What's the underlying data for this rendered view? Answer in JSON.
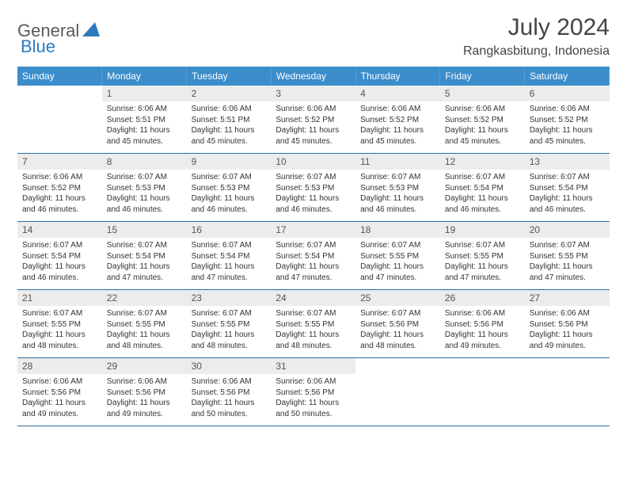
{
  "logo": {
    "part1": "General",
    "part2": "Blue"
  },
  "title": "July 2024",
  "location": "Rangkasbitung, Indonesia",
  "colors": {
    "header_bg": "#3c8dcc",
    "header_text": "#ffffff",
    "daynum_bg": "#ececec",
    "row_separator": "#2b6fa3",
    "logo_gray": "#5a5a5a",
    "logo_blue": "#2b7bbd",
    "body_text": "#333333"
  },
  "typography": {
    "title_fontsize": 30,
    "location_fontsize": 16,
    "header_fontsize": 12,
    "daynum_fontsize": 12,
    "dayinfo_fontsize": 10
  },
  "weekdays": [
    "Sunday",
    "Monday",
    "Tuesday",
    "Wednesday",
    "Thursday",
    "Friday",
    "Saturday"
  ],
  "weeks": [
    [
      null,
      {
        "n": "1",
        "sunrise": "6:06 AM",
        "sunset": "5:51 PM",
        "daylight": "11 hours and 45 minutes."
      },
      {
        "n": "2",
        "sunrise": "6:06 AM",
        "sunset": "5:51 PM",
        "daylight": "11 hours and 45 minutes."
      },
      {
        "n": "3",
        "sunrise": "6:06 AM",
        "sunset": "5:52 PM",
        "daylight": "11 hours and 45 minutes."
      },
      {
        "n": "4",
        "sunrise": "6:06 AM",
        "sunset": "5:52 PM",
        "daylight": "11 hours and 45 minutes."
      },
      {
        "n": "5",
        "sunrise": "6:06 AM",
        "sunset": "5:52 PM",
        "daylight": "11 hours and 45 minutes."
      },
      {
        "n": "6",
        "sunrise": "6:06 AM",
        "sunset": "5:52 PM",
        "daylight": "11 hours and 45 minutes."
      }
    ],
    [
      {
        "n": "7",
        "sunrise": "6:06 AM",
        "sunset": "5:52 PM",
        "daylight": "11 hours and 46 minutes."
      },
      {
        "n": "8",
        "sunrise": "6:07 AM",
        "sunset": "5:53 PM",
        "daylight": "11 hours and 46 minutes."
      },
      {
        "n": "9",
        "sunrise": "6:07 AM",
        "sunset": "5:53 PM",
        "daylight": "11 hours and 46 minutes."
      },
      {
        "n": "10",
        "sunrise": "6:07 AM",
        "sunset": "5:53 PM",
        "daylight": "11 hours and 46 minutes."
      },
      {
        "n": "11",
        "sunrise": "6:07 AM",
        "sunset": "5:53 PM",
        "daylight": "11 hours and 46 minutes."
      },
      {
        "n": "12",
        "sunrise": "6:07 AM",
        "sunset": "5:54 PM",
        "daylight": "11 hours and 46 minutes."
      },
      {
        "n": "13",
        "sunrise": "6:07 AM",
        "sunset": "5:54 PM",
        "daylight": "11 hours and 46 minutes."
      }
    ],
    [
      {
        "n": "14",
        "sunrise": "6:07 AM",
        "sunset": "5:54 PM",
        "daylight": "11 hours and 46 minutes."
      },
      {
        "n": "15",
        "sunrise": "6:07 AM",
        "sunset": "5:54 PM",
        "daylight": "11 hours and 47 minutes."
      },
      {
        "n": "16",
        "sunrise": "6:07 AM",
        "sunset": "5:54 PM",
        "daylight": "11 hours and 47 minutes."
      },
      {
        "n": "17",
        "sunrise": "6:07 AM",
        "sunset": "5:54 PM",
        "daylight": "11 hours and 47 minutes."
      },
      {
        "n": "18",
        "sunrise": "6:07 AM",
        "sunset": "5:55 PM",
        "daylight": "11 hours and 47 minutes."
      },
      {
        "n": "19",
        "sunrise": "6:07 AM",
        "sunset": "5:55 PM",
        "daylight": "11 hours and 47 minutes."
      },
      {
        "n": "20",
        "sunrise": "6:07 AM",
        "sunset": "5:55 PM",
        "daylight": "11 hours and 47 minutes."
      }
    ],
    [
      {
        "n": "21",
        "sunrise": "6:07 AM",
        "sunset": "5:55 PM",
        "daylight": "11 hours and 48 minutes."
      },
      {
        "n": "22",
        "sunrise": "6:07 AM",
        "sunset": "5:55 PM",
        "daylight": "11 hours and 48 minutes."
      },
      {
        "n": "23",
        "sunrise": "6:07 AM",
        "sunset": "5:55 PM",
        "daylight": "11 hours and 48 minutes."
      },
      {
        "n": "24",
        "sunrise": "6:07 AM",
        "sunset": "5:55 PM",
        "daylight": "11 hours and 48 minutes."
      },
      {
        "n": "25",
        "sunrise": "6:07 AM",
        "sunset": "5:56 PM",
        "daylight": "11 hours and 48 minutes."
      },
      {
        "n": "26",
        "sunrise": "6:06 AM",
        "sunset": "5:56 PM",
        "daylight": "11 hours and 49 minutes."
      },
      {
        "n": "27",
        "sunrise": "6:06 AM",
        "sunset": "5:56 PM",
        "daylight": "11 hours and 49 minutes."
      }
    ],
    [
      {
        "n": "28",
        "sunrise": "6:06 AM",
        "sunset": "5:56 PM",
        "daylight": "11 hours and 49 minutes."
      },
      {
        "n": "29",
        "sunrise": "6:06 AM",
        "sunset": "5:56 PM",
        "daylight": "11 hours and 49 minutes."
      },
      {
        "n": "30",
        "sunrise": "6:06 AM",
        "sunset": "5:56 PM",
        "daylight": "11 hours and 50 minutes."
      },
      {
        "n": "31",
        "sunrise": "6:06 AM",
        "sunset": "5:56 PM",
        "daylight": "11 hours and 50 minutes."
      },
      null,
      null,
      null
    ]
  ],
  "labels": {
    "sunrise": "Sunrise:",
    "sunset": "Sunset:",
    "daylight": "Daylight:"
  }
}
